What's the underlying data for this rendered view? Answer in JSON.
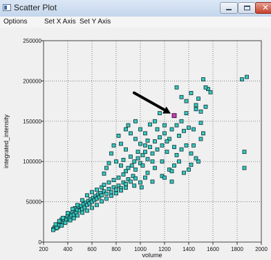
{
  "window": {
    "title": "Scatter Plot",
    "icon": "app-window-icon",
    "controls": [
      "minimize-icon",
      "maximize-icon",
      "close-icon"
    ]
  },
  "menu": {
    "items": [
      "Options",
      "Set X Axis",
      "Set Y Axis"
    ]
  },
  "colors": {
    "point_fill": "#38c8c0",
    "highlight_fill": "#c040b0",
    "grid": "#555555",
    "arrow": "#000000"
  },
  "chart_data": {
    "type": "scatter",
    "title": "",
    "xlabel": "volume",
    "ylabel": "integrated_intensity",
    "xlim": [
      200,
      2000
    ],
    "ylim": [
      0,
      250000
    ],
    "xticks": [
      200,
      400,
      600,
      800,
      1000,
      1200,
      1400,
      1600,
      1800,
      2000
    ],
    "yticks": [
      0,
      50000,
      100000,
      150000,
      200000,
      250000
    ],
    "grid": true,
    "highlight_point": {
      "x": 1280,
      "y": 157000
    },
    "annotation": "arrow pointing to highlighted point",
    "points": [
      [
        280,
        16000
      ],
      [
        290,
        18000
      ],
      [
        300,
        17000
      ],
      [
        300,
        20000
      ],
      [
        310,
        22000
      ],
      [
        320,
        19000
      ],
      [
        330,
        24000
      ],
      [
        330,
        21000
      ],
      [
        340,
        26000
      ],
      [
        350,
        23000
      ],
      [
        350,
        28000
      ],
      [
        360,
        25000
      ],
      [
        370,
        27000
      ],
      [
        380,
        30000
      ],
      [
        390,
        28000
      ],
      [
        400,
        32000
      ],
      [
        410,
        29000
      ],
      [
        420,
        35000
      ],
      [
        420,
        31000
      ],
      [
        430,
        33000
      ],
      [
        440,
        37000
      ],
      [
        450,
        34000
      ],
      [
        460,
        38000
      ],
      [
        460,
        42000
      ],
      [
        470,
        36000
      ],
      [
        480,
        40000
      ],
      [
        490,
        44000
      ],
      [
        500,
        39000
      ],
      [
        510,
        45000
      ],
      [
        520,
        41000
      ],
      [
        530,
        47000
      ],
      [
        540,
        43000
      ],
      [
        550,
        49000
      ],
      [
        560,
        46000
      ],
      [
        570,
        51000
      ],
      [
        580,
        48000
      ],
      [
        590,
        53000
      ],
      [
        600,
        50000
      ],
      [
        610,
        55000
      ],
      [
        620,
        52000
      ],
      [
        630,
        57000
      ],
      [
        640,
        54000
      ],
      [
        650,
        59000
      ],
      [
        660,
        56000
      ],
      [
        670,
        61000
      ],
      [
        680,
        58000
      ],
      [
        700,
        63000
      ],
      [
        720,
        60000
      ],
      [
        740,
        66000
      ],
      [
        760,
        62000
      ],
      [
        780,
        68000
      ],
      [
        800,
        65000
      ],
      [
        820,
        70000
      ],
      [
        840,
        67000
      ],
      [
        860,
        74000
      ],
      [
        880,
        72000
      ],
      [
        900,
        78000
      ],
      [
        920,
        75000
      ],
      [
        940,
        82000
      ],
      [
        960,
        79000
      ],
      [
        280,
        15000
      ],
      [
        310,
        17500
      ],
      [
        350,
        20500
      ],
      [
        380,
        24000
      ],
      [
        420,
        27000
      ],
      [
        450,
        29500
      ],
      [
        480,
        33000
      ],
      [
        520,
        36500
      ],
      [
        560,
        39000
      ],
      [
        600,
        42500
      ],
      [
        640,
        46000
      ],
      [
        680,
        50500
      ],
      [
        720,
        54000
      ],
      [
        760,
        57500
      ],
      [
        800,
        60500
      ],
      [
        840,
        64000
      ],
      [
        880,
        67500
      ],
      [
        300,
        22000
      ],
      [
        330,
        26000
      ],
      [
        360,
        30000
      ],
      [
        400,
        36000
      ],
      [
        440,
        41000
      ],
      [
        480,
        46000
      ],
      [
        520,
        52000
      ],
      [
        560,
        58000
      ],
      [
        600,
        62000
      ],
      [
        640,
        65000
      ],
      [
        680,
        68000
      ],
      [
        700,
        71000
      ],
      [
        740,
        74000
      ],
      [
        780,
        77000
      ],
      [
        820,
        80000
      ],
      [
        860,
        84000
      ],
      [
        880,
        88000
      ],
      [
        900,
        92000
      ],
      [
        930,
        95000
      ],
      [
        950,
        100000
      ],
      [
        980,
        104000
      ],
      [
        1000,
        98000
      ],
      [
        1020,
        108000
      ],
      [
        1040,
        112000
      ],
      [
        1060,
        103000
      ],
      [
        1080,
        118000
      ],
      [
        1100,
        110000
      ],
      [
        1120,
        125000
      ],
      [
        1140,
        115000
      ],
      [
        1160,
        130000
      ],
      [
        1180,
        120000
      ],
      [
        1200,
        135000
      ],
      [
        1220,
        112000
      ],
      [
        1240,
        128000
      ],
      [
        1260,
        140000
      ],
      [
        1280,
        118000
      ],
      [
        1300,
        145000
      ],
      [
        1320,
        132000
      ],
      [
        1340,
        150000
      ],
      [
        1360,
        138000
      ],
      [
        1380,
        160000
      ],
      [
        1400,
        142000
      ],
      [
        1420,
        110000
      ],
      [
        1440,
        120000
      ],
      [
        1460,
        165000
      ],
      [
        1480,
        178000
      ],
      [
        1500,
        148000
      ],
      [
        1520,
        135000
      ],
      [
        1540,
        168000
      ],
      [
        1560,
        190000
      ],
      [
        1300,
        192000
      ],
      [
        1340,
        180000
      ],
      [
        1380,
        175000
      ],
      [
        1420,
        185000
      ],
      [
        1460,
        170000
      ],
      [
        1500,
        162000
      ],
      [
        1520,
        202000
      ],
      [
        1540,
        192000
      ],
      [
        1580,
        186000
      ],
      [
        1840,
        202000
      ],
      [
        1860,
        112000
      ],
      [
        1880,
        205000
      ],
      [
        1860,
        92000
      ],
      [
        1500,
        128000
      ],
      [
        1480,
        100000
      ],
      [
        1420,
        96000
      ],
      [
        1360,
        86000
      ],
      [
        1300,
        108000
      ],
      [
        1240,
        90000
      ],
      [
        1180,
        82000
      ],
      [
        1120,
        92000
      ],
      [
        1060,
        86000
      ],
      [
        1000,
        74000
      ],
      [
        960,
        90000
      ],
      [
        920,
        106000
      ],
      [
        880,
        115000
      ],
      [
        840,
        122000
      ],
      [
        820,
        132000
      ],
      [
        780,
        120000
      ],
      [
        760,
        110000
      ],
      [
        740,
        98000
      ],
      [
        720,
        92000
      ],
      [
        700,
        85000
      ],
      [
        900,
        145000
      ],
      [
        960,
        150000
      ],
      [
        1000,
        140000
      ],
      [
        1040,
        135000
      ],
      [
        1080,
        146000
      ],
      [
        1120,
        150000
      ],
      [
        1160,
        160000
      ],
      [
        1200,
        145000
      ],
      [
        1040,
        120000
      ],
      [
        1000,
        122000
      ],
      [
        960,
        128000
      ],
      [
        920,
        135000
      ],
      [
        880,
        140000
      ],
      [
        840,
        95000
      ],
      [
        800,
        100000
      ],
      [
        860,
        102000
      ],
      [
        980,
        112000
      ],
      [
        1020,
        95000
      ],
      [
        1060,
        126000
      ],
      [
        1100,
        100000
      ],
      [
        1140,
        140000
      ],
      [
        1180,
        100000
      ],
      [
        1220,
        125000
      ],
      [
        1260,
        88000
      ],
      [
        1320,
        100000
      ],
      [
        1380,
        120000
      ],
      [
        1440,
        140000
      ],
      [
        1200,
        80000
      ],
      [
        1260,
        75000
      ],
      [
        1100,
        75000
      ],
      [
        950,
        70000
      ],
      [
        1010,
        68000
      ],
      [
        1040,
        80000
      ],
      [
        1280,
        95000
      ],
      [
        1340,
        115000
      ],
      [
        1400,
        90000
      ],
      [
        1460,
        104000
      ]
    ]
  }
}
